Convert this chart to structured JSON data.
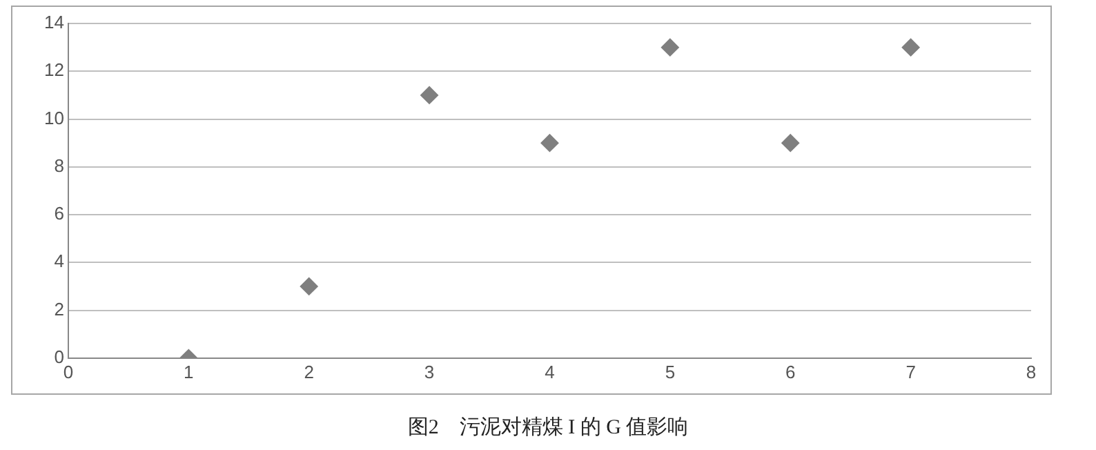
{
  "chart_data": {
    "type": "scatter",
    "title": "图2　污泥对精煤 I 的 G 值影响",
    "x": [
      1,
      2,
      3,
      4,
      5,
      6,
      7
    ],
    "series": [
      {
        "color": "#7f7f7f",
        "values": [
          0,
          3,
          11,
          9,
          13,
          9,
          13
        ]
      }
    ],
    "xlim": [
      0,
      8
    ],
    "xticks": [
      0,
      1,
      2,
      3,
      4,
      5,
      6,
      7,
      8
    ],
    "ylim": [
      0,
      14
    ],
    "yticks": [
      0,
      2,
      4,
      6,
      8,
      10,
      12,
      14
    ],
    "grid": "y",
    "legend": false,
    "marker": "diamond"
  }
}
